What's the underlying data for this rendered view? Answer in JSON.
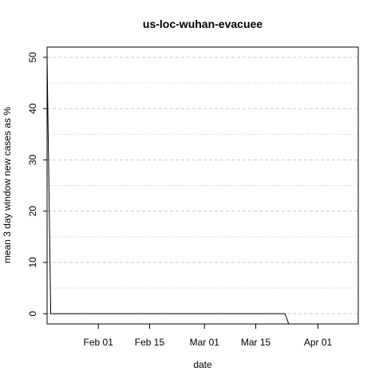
{
  "chart_data": {
    "type": "line",
    "title": "us-loc-wuhan-evacuee",
    "xlabel": "date",
    "ylabel": "mean  3  day window new cases as %",
    "x_type": "date",
    "xlim": [
      "2020-01-18",
      "2020-04-12"
    ],
    "ylim": [
      -2,
      52
    ],
    "x_ticks": [
      {
        "date": "2020-02-01",
        "label": "Feb 01"
      },
      {
        "date": "2020-02-15",
        "label": "Feb 15"
      },
      {
        "date": "2020-03-01",
        "label": "Mar 01"
      },
      {
        "date": "2020-03-15",
        "label": "Mar 15"
      },
      {
        "date": "2020-04-01",
        "label": "Apr 01"
      }
    ],
    "y_ticks": [
      0,
      10,
      20,
      30,
      40,
      50
    ],
    "y_minor_grid": [
      5,
      15,
      25,
      35,
      45
    ],
    "grid": true,
    "series": [
      {
        "x": [
          "2020-01-18",
          "2020-01-19",
          "2020-03-22",
          "2020-03-23",
          "2020-03-24"
        ],
        "y": [
          50,
          0,
          0,
          0,
          -2
        ]
      }
    ]
  }
}
